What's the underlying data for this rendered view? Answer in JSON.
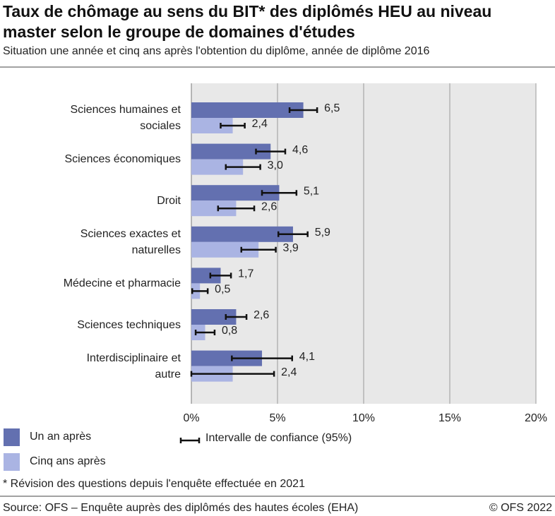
{
  "chart_data": {
    "type": "bar",
    "orientation": "horizontal",
    "title": "Taux de chômage au sens du BIT* des diplômés HEU au niveau master selon le groupe de domaines d'études",
    "subtitle": "Situation une année et cinq ans après l'obtention du diplôme, année de diplôme 2016",
    "categories": [
      "Sciences humaines et\nsociales",
      "Sciences économiques",
      "Droit",
      "Sciences exactes et\nnaturelles",
      "Médecine et pharmacie",
      "Sciences techniques",
      "Interdisciplinaire et\nautre"
    ],
    "series": [
      {
        "name": "Un an après",
        "color": "#6370b0",
        "values": [
          6.5,
          4.6,
          5.1,
          5.9,
          1.7,
          2.6,
          4.1
        ],
        "value_labels": [
          "6,5",
          "4,6",
          "5,1",
          "5,9",
          "1,7",
          "2,6",
          "4,1"
        ],
        "errors": [
          0.8,
          0.85,
          1.0,
          0.85,
          0.6,
          0.6,
          1.75
        ]
      },
      {
        "name": "Cinq ans après",
        "color": "#aab4e3",
        "values": [
          2.4,
          3.0,
          2.6,
          3.9,
          0.5,
          0.8,
          2.4
        ],
        "value_labels": [
          "2,4",
          "3,0",
          "2,6",
          "3,9",
          "0,5",
          "0,8",
          "2,4"
        ],
        "errors": [
          0.7,
          1.0,
          1.05,
          1.0,
          0.45,
          0.55,
          2.4
        ]
      }
    ],
    "error_legend": "Intervalle de confiance (95%)",
    "xlim": [
      0,
      20
    ],
    "xticks": [
      {
        "value": 0,
        "label": "0%"
      },
      {
        "value": 5,
        "label": "5%"
      },
      {
        "value": 10,
        "label": "10%"
      },
      {
        "value": 15,
        "label": "15%"
      },
      {
        "value": 20,
        "label": "20%"
      }
    ],
    "grid": true,
    "footnote": "* Révision des questions depuis l'enquête effectuée en 2021",
    "source": "Source: OFS – Enquête auprès des diplômés des hautes écoles (EHA)",
    "copyright": "© OFS 2022"
  }
}
